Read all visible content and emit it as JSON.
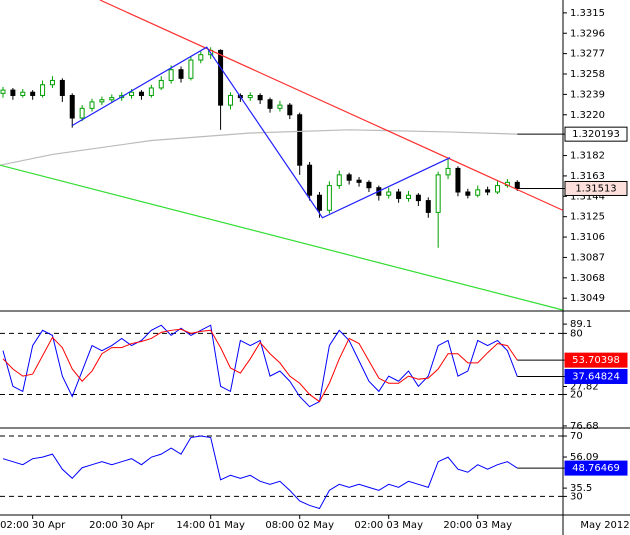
{
  "chart_data": [
    {
      "type": "candlestick",
      "categories": [
        null,
        null,
        null,
        "02:00 30 Apr",
        null,
        null,
        null,
        null,
        null,
        null,
        null,
        null,
        "20:00 30 Apr",
        null,
        null,
        null,
        null,
        null,
        null,
        null,
        null,
        "14:00 01 May",
        null,
        null,
        null,
        null,
        null,
        null,
        null,
        null,
        "08:00 02 May",
        null,
        null,
        null,
        null,
        null,
        null,
        null,
        null,
        "02:00 03 May",
        null,
        null,
        null,
        null,
        null,
        null,
        null,
        null,
        "20:00 03 May",
        null,
        null,
        null,
        null
      ],
      "period_label": "May 2012",
      "values": [
        [
          1.324,
          1.3246,
          1.3236,
          1.3243
        ],
        [
          1.3243,
          1.3245,
          1.3234,
          1.3238
        ],
        [
          1.3238,
          1.3244,
          1.3236,
          1.3241
        ],
        [
          1.3241,
          1.3243,
          1.3234,
          1.3238
        ],
        [
          1.3238,
          1.3252,
          1.3236,
          1.3248
        ],
        [
          1.3248,
          1.3256,
          1.3245,
          1.3252
        ],
        [
          1.3252,
          1.3254,
          1.3232,
          1.3238
        ],
        [
          1.3238,
          1.324,
          1.3208,
          1.3217
        ],
        [
          1.3217,
          1.3229,
          1.3214,
          1.3226
        ],
        [
          1.3226,
          1.3235,
          1.3223,
          1.3232
        ],
        [
          1.3232,
          1.3237,
          1.3229,
          1.3234
        ],
        [
          1.3234,
          1.3239,
          1.3231,
          1.3236
        ],
        [
          1.3236,
          1.3241,
          1.3233,
          1.3238
        ],
        [
          1.3238,
          1.3244,
          1.3235,
          1.3241
        ],
        [
          1.3241,
          1.3243,
          1.3234,
          1.3238
        ],
        [
          1.3238,
          1.3248,
          1.3236,
          1.3245
        ],
        [
          1.3245,
          1.3256,
          1.3243,
          1.3252
        ],
        [
          1.3252,
          1.3266,
          1.3249,
          1.3262
        ],
        [
          1.3262,
          1.3265,
          1.325,
          1.3254
        ],
        [
          1.3254,
          1.3274,
          1.3252,
          1.3271
        ],
        [
          1.3271,
          1.3279,
          1.3268,
          1.3276
        ],
        [
          1.3276,
          1.3283,
          1.3272,
          1.328
        ],
        [
          1.328,
          1.3281,
          1.3206,
          1.3229
        ],
        [
          1.3229,
          1.3241,
          1.3225,
          1.3238
        ],
        [
          1.3238,
          1.324,
          1.3232,
          1.3236
        ],
        [
          1.3236,
          1.3241,
          1.3233,
          1.3238
        ],
        [
          1.3238,
          1.324,
          1.323,
          1.3234
        ],
        [
          1.3234,
          1.3236,
          1.3222,
          1.3226
        ],
        [
          1.3226,
          1.3233,
          1.3223,
          1.3229
        ],
        [
          1.3229,
          1.3231,
          1.3216,
          1.322
        ],
        [
          1.322,
          1.3222,
          1.3164,
          1.3173
        ],
        [
          1.3173,
          1.3176,
          1.314,
          1.3145
        ],
        [
          1.3145,
          1.3148,
          1.3124,
          1.3131
        ],
        [
          1.3131,
          1.3158,
          1.3128,
          1.3154
        ],
        [
          1.3154,
          1.3168,
          1.3151,
          1.3164
        ],
        [
          1.3164,
          1.3166,
          1.3155,
          1.3159
        ],
        [
          1.3159,
          1.3162,
          1.3153,
          1.3157
        ],
        [
          1.3157,
          1.3159,
          1.3148,
          1.3152
        ],
        [
          1.3152,
          1.3154,
          1.314,
          1.3145
        ],
        [
          1.3145,
          1.3152,
          1.3142,
          1.3148
        ],
        [
          1.3148,
          1.3151,
          1.3138,
          1.3142
        ],
        [
          1.3142,
          1.3149,
          1.3139,
          1.3145
        ],
        [
          1.3145,
          1.3147,
          1.3135,
          1.314
        ],
        [
          1.314,
          1.3143,
          1.3124,
          1.3129
        ],
        [
          1.3129,
          1.3167,
          1.3096,
          1.3164
        ],
        [
          1.3164,
          1.318,
          1.316,
          1.317
        ],
        [
          1.317,
          1.3172,
          1.3144,
          1.3148
        ],
        [
          1.3148,
          1.3151,
          1.3142,
          1.3145
        ],
        [
          1.3145,
          1.3154,
          1.3143,
          1.315
        ],
        [
          1.315,
          1.3153,
          1.3145,
          1.3148
        ],
        [
          1.3148,
          1.3158,
          1.3146,
          1.3154
        ],
        [
          1.3154,
          1.316,
          1.3152,
          1.3157
        ],
        [
          1.3157,
          1.3159,
          1.3149,
          1.31513
        ]
      ],
      "up_color": "#00a000",
      "down_color": "#000000",
      "ylim": [
        1.3038,
        1.3327
      ],
      "yticks": [
        1.3315,
        1.3296,
        1.3277,
        1.3258,
        1.3239,
        {
          "value": 1.322,
          "label": "1.3220"
        },
        1.3182,
        1.3163,
        1.3144,
        1.3125,
        1.3106,
        1.3087,
        1.3068,
        1.3049
      ],
      "lines": [
        {
          "color": "#bbbbbb",
          "x": [
            -0.3,
            5,
            15,
            25,
            35,
            45,
            52
          ],
          "values": [
            1.3173,
            1.3183,
            1.3196,
            1.3203,
            1.3206,
            1.3204,
            1.320193
          ]
        },
        {
          "color": "#ff3030",
          "x": [
            9.8,
            56.6
          ],
          "values": [
            1.3327,
            1.3131
          ]
        },
        {
          "color": "#33dd33",
          "x": [
            -0.3,
            56.6
          ],
          "values": [
            1.3173,
            1.3038
          ]
        },
        {
          "color": "#2020ff",
          "x": [
            7,
            20.6,
            32.3,
            45.2
          ],
          "values": [
            1.321,
            1.3283,
            1.3124,
            1.318
          ]
        }
      ]
    },
    {
      "type": "oscillator",
      "ylim": [
        -10,
        100
      ],
      "yticks": [
        20,
        27.82,
        80,
        89.1
      ],
      "levels": [
        20,
        80
      ],
      "series": [
        {
          "color": "#0000ff",
          "values": [
            63,
            28,
            23,
            68,
            83,
            78,
            38,
            18,
            43,
            68,
            63,
            68,
            75,
            68,
            73,
            83,
            88,
            78,
            85,
            78,
            83,
            88,
            28,
            23,
            73,
            68,
            73,
            38,
            43,
            33,
            18,
            8,
            13,
            68,
            83,
            73,
            53,
            33,
            23,
            38,
            33,
            43,
            28,
            38,
            68,
            73,
            38,
            43,
            73,
            68,
            73,
            63,
            37.64824
          ]
        },
        {
          "color": "#ff0000",
          "values": [
            55,
            45,
            38,
            40,
            58,
            76,
            66,
            45,
            33,
            43,
            60,
            66,
            66,
            70,
            72,
            75,
            81,
            83,
            84,
            80,
            82,
            83,
            66,
            46,
            41,
            55,
            71,
            60,
            51,
            38,
            31,
            20,
            13,
            31,
            55,
            75,
            70,
            53,
            36,
            31,
            31,
            38,
            35,
            36,
            45,
            60,
            60,
            51,
            51,
            61,
            70,
            68,
            53.70398
          ]
        }
      ]
    },
    {
      "type": "oscillator",
      "ylim": [
        19,
        74
      ],
      "yticks": [
        30,
        35.5,
        56.09,
        70,
        76.68
      ],
      "levels": [
        30,
        70
      ],
      "series": [
        {
          "color": "#0000ff",
          "values": [
            55,
            53,
            51,
            55,
            56,
            58,
            48,
            42,
            49,
            51,
            53,
            51,
            53,
            55,
            51,
            56,
            58,
            62,
            58,
            69,
            70,
            69,
            41,
            44,
            42,
            44,
            40,
            38,
            40,
            34,
            27,
            24,
            22,
            34,
            38,
            36,
            38,
            36,
            34,
            38,
            36,
            40,
            38,
            36,
            53,
            56,
            48,
            46,
            51,
            48,
            51,
            53,
            48.76469
          ]
        }
      ]
    }
  ]
}
